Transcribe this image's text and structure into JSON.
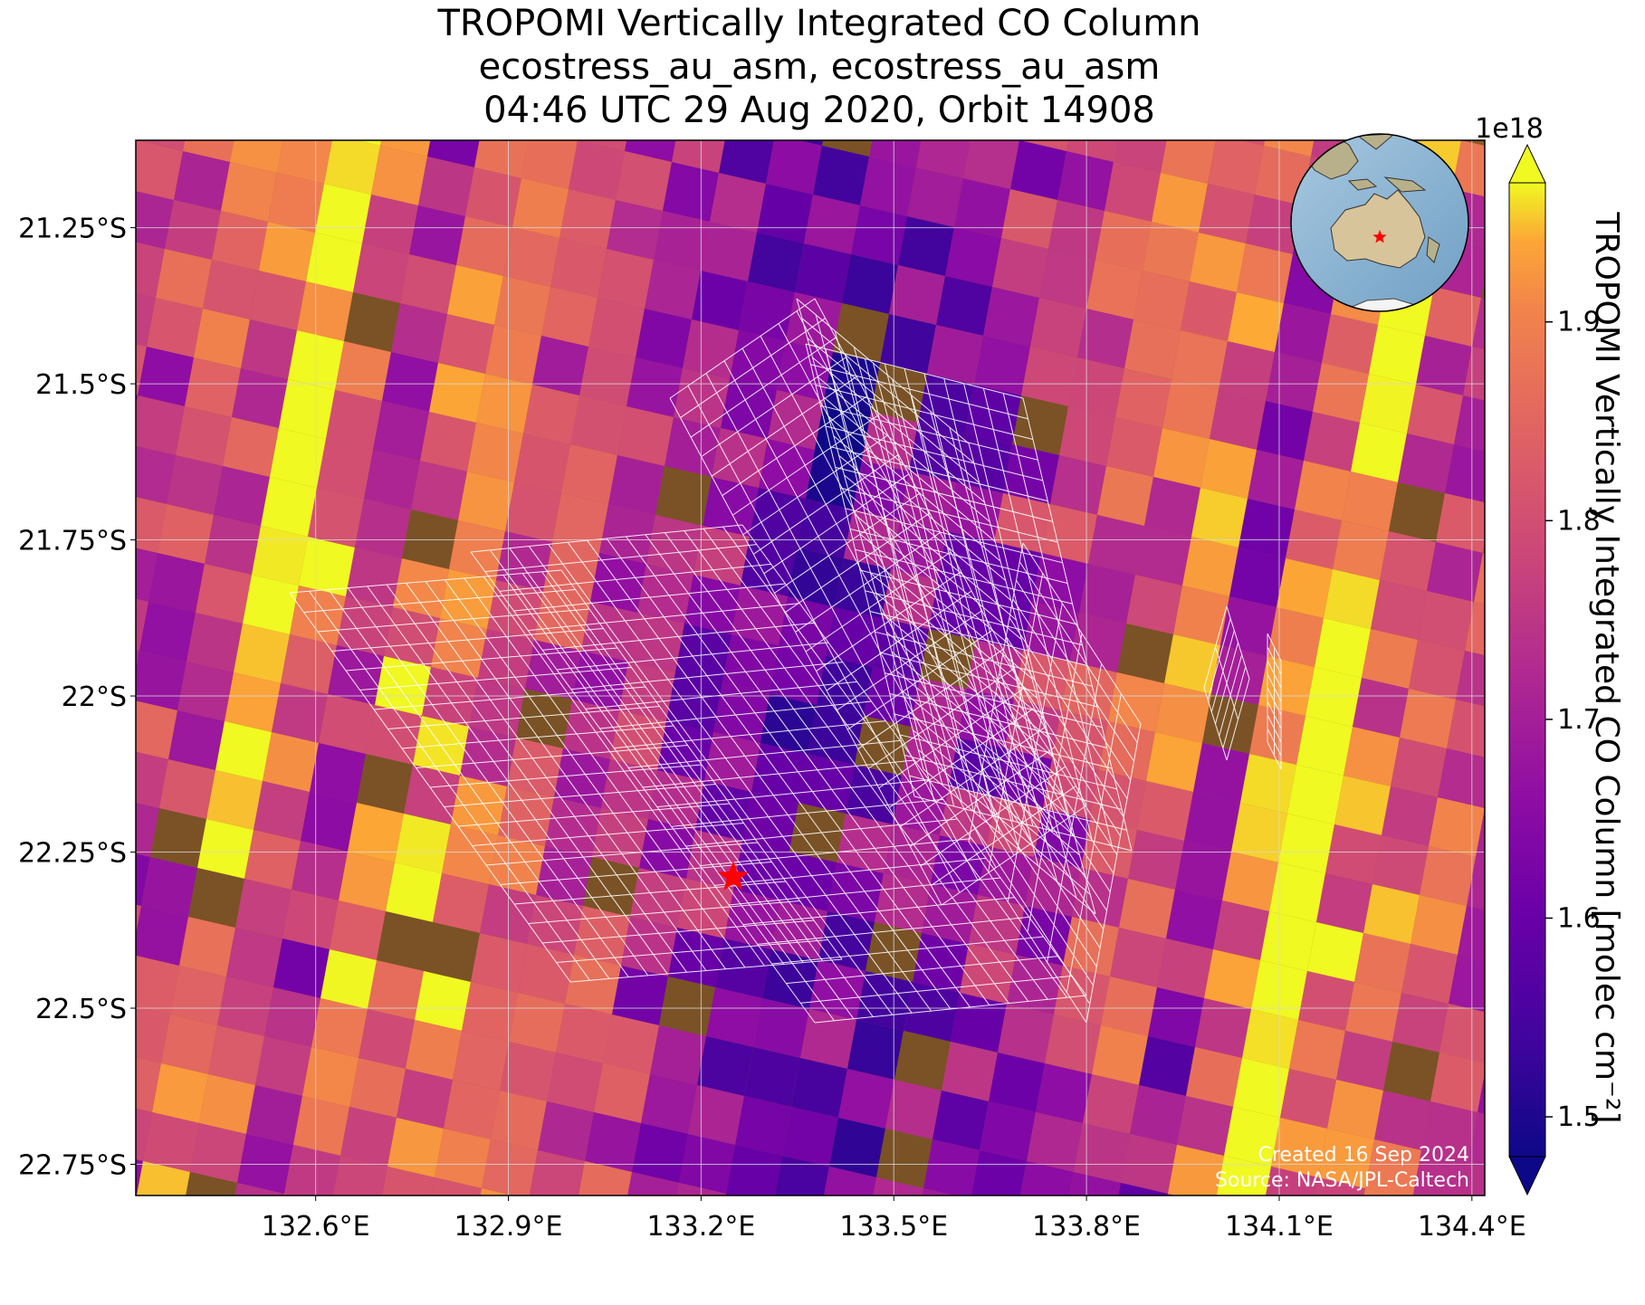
{
  "title": {
    "line1": "TROPOMI Vertically Integrated CO Column",
    "line2": "ecostress_au_asm, ecostress_au_asm",
    "line3": "04:46 UTC 29 Aug 2020, Orbit 14908"
  },
  "map": {
    "lon_range": [
      132.32,
      134.42
    ],
    "lat_range": [
      -22.8,
      -21.11
    ],
    "lon_ticks": [
      {
        "value": 132.6,
        "label": "132.6°E"
      },
      {
        "value": 132.9,
        "label": "132.9°E"
      },
      {
        "value": 133.2,
        "label": "133.2°E"
      },
      {
        "value": 133.5,
        "label": "133.5°E"
      },
      {
        "value": 133.8,
        "label": "133.8°E"
      },
      {
        "value": 134.1,
        "label": "134.1°E"
      },
      {
        "value": 134.4,
        "label": "134.4°E"
      }
    ],
    "lat_ticks": [
      {
        "value": -21.25,
        "label": "21.25°S"
      },
      {
        "value": -21.5,
        "label": "21.5°S"
      },
      {
        "value": -21.75,
        "label": "21.75°S"
      },
      {
        "value": -22.0,
        "label": "22°S"
      },
      {
        "value": -22.25,
        "label": "22.25°S"
      },
      {
        "value": -22.5,
        "label": "22.5°S"
      },
      {
        "value": -22.75,
        "label": "22.75°S"
      }
    ],
    "gridlines": true,
    "site_marker": {
      "lon": 133.25,
      "lat": -22.29,
      "symbol": "star",
      "color": "#ff0000"
    },
    "grid_overlay_color": "#ffffff",
    "background": "satellite imagery (desert)"
  },
  "colorbar": {
    "label": "TROPOMI Vertically Integrated CO Column [molec cm⁻²]",
    "multiplier": "1e18",
    "colormap": "plasma",
    "range": [
      1.48,
      1.97
    ],
    "extend": "both",
    "ticks": [
      {
        "value": 1.5,
        "label": "1.5"
      },
      {
        "value": 1.6,
        "label": "1.6"
      },
      {
        "value": 1.7,
        "label": "1.7"
      },
      {
        "value": 1.8,
        "label": "1.8"
      },
      {
        "value": 1.9,
        "label": "1.9"
      }
    ]
  },
  "inset_globe": {
    "center_region": "Australia",
    "marker_color": "#ff0000"
  },
  "credits": {
    "created": "Created 16 Sep 2024",
    "source": "Source: NASA/JPL-Caltech"
  }
}
